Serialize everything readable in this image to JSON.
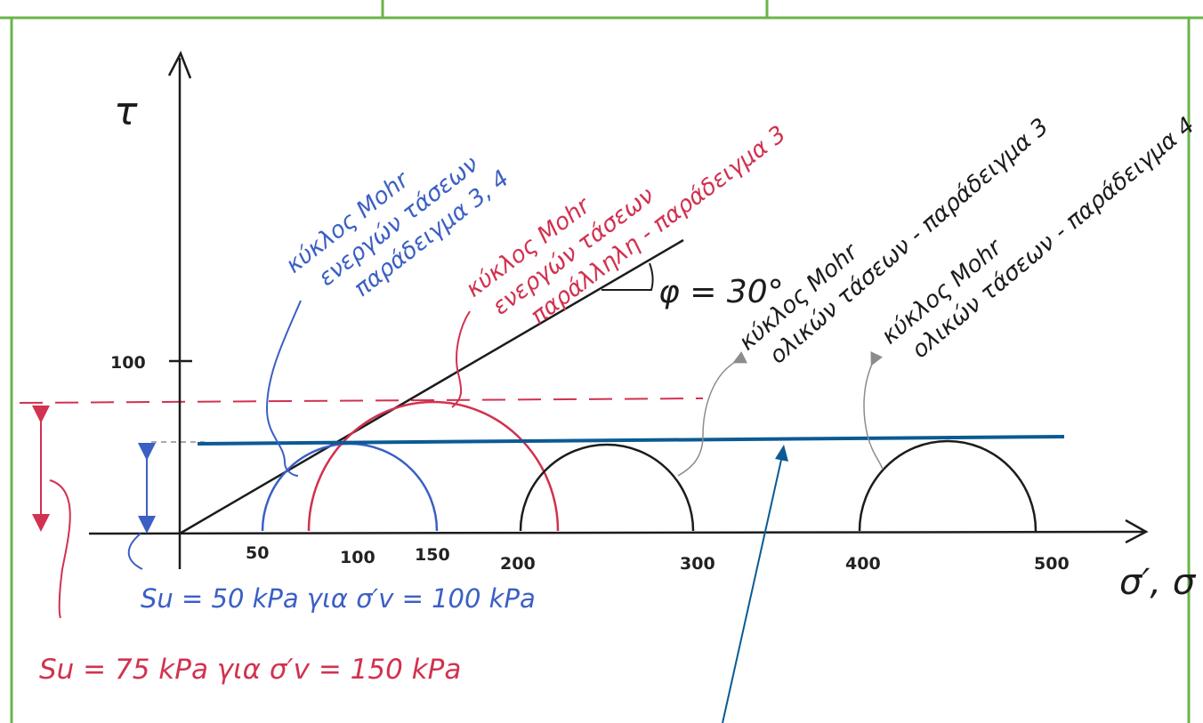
{
  "axes": {
    "y_label": "τ",
    "x_label": "σ′, σ",
    "y_tick": "100",
    "x_ticks": [
      "50",
      "100",
      "150",
      "200",
      "300",
      "400",
      "500"
    ]
  },
  "friction_angle_label": "φ = 30°",
  "labels": {
    "effective_3_4": [
      "κύκλος Mohr",
      "ενεργών τάσεων",
      "παράδειγμα 3, 4"
    ],
    "effective_parallel_3": [
      "κύκλος Mohr",
      "ενεργών τάσεων",
      "παράλληλη - παράδειγμα 3"
    ],
    "total_3": [
      "κύκλος Mohr",
      "ολικών τάσεων - παράδειγμα 3"
    ],
    "total_4": [
      "κύκλος Mohr",
      "ολικών τάσεων - παράδειγμα 4"
    ]
  },
  "su_blue": "Su = 50 kPa για σ′v = 100 kPa",
  "su_red": "Su = 75 kPa για σ′v = 150 kPa",
  "colors": {
    "blue": "#3b5fc4",
    "red": "#d2314f",
    "black": "#1c1c1c",
    "green_grid": "#6ab44a",
    "dark_blue_line": "#0b5a94",
    "gray": "#8c8c8c"
  }
}
